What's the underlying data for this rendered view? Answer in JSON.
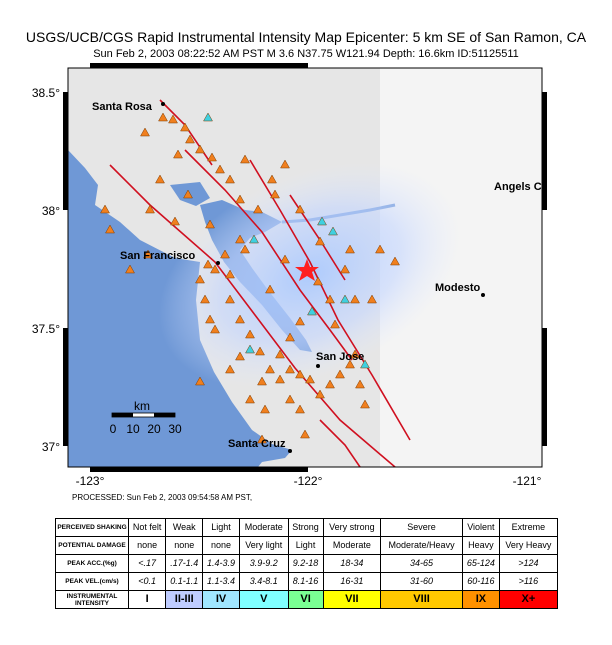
{
  "header": {
    "title": "USGS/UCB/CGS Rapid Instrumental Intensity Map Epicenter:   5 km SE  of San Ramon, CA",
    "subtitle": "Sun Feb  2, 2003 08:22:52 AM PST   M 3.6   N37.75 W121.94   Depth: 16.6km   ID:51125511"
  },
  "map": {
    "lat_ticks": [
      "38.5°",
      "38°",
      "37.5°",
      "37°"
    ],
    "lon_ticks": [
      "-123°",
      "-122°",
      "-121°"
    ],
    "places": [
      "Santa Rosa",
      "San Francisco",
      "Angels C",
      "Modesto",
      "San Jose",
      "Santa Cruz"
    ],
    "scale": {
      "unit": "km",
      "labels": [
        "0",
        "10",
        "20",
        "30"
      ]
    }
  },
  "processed": "PROCESSED: Sun Feb 2, 2003 09:54:58 AM PST,",
  "table": {
    "rows": [
      {
        "label": "PERCEIVED SHAKING",
        "cells": [
          "Not felt",
          "Weak",
          "Light",
          "Moderate",
          "Strong",
          "Very strong",
          "Severe",
          "Violent",
          "Extreme"
        ]
      },
      {
        "label": "POTENTIAL DAMAGE",
        "cells": [
          "none",
          "none",
          "none",
          "Very light",
          "Light",
          "Moderate",
          "Moderate/Heavy",
          "Heavy",
          "Very Heavy"
        ]
      },
      {
        "label": "PEAK ACC.(%g)",
        "cells": [
          "<.17",
          ".17-1.4",
          "1.4-3.9",
          "3.9-9.2",
          "9.2-18",
          "18-34",
          "34-65",
          "65-124",
          ">124"
        ]
      },
      {
        "label": "PEAK VEL.(cm/s)",
        "cells": [
          "<0.1",
          "0.1-1.1",
          "1.1-3.4",
          "3.4-8.1",
          "8.1-16",
          "16-31",
          "31-60",
          "60-116",
          ">116"
        ]
      },
      {
        "label": "INSTRUMENTAL INTENSITY",
        "cells": [
          "I",
          "II-III",
          "IV",
          "V",
          "VI",
          "VII",
          "VIII",
          "IX",
          "X+"
        ]
      }
    ],
    "intensity_colors": [
      "#ffffff",
      "#bfccff",
      "#a0e6ff",
      "#80ffff",
      "#7aff93",
      "#ffff00",
      "#ffc800",
      "#ff9100",
      "#ff0000"
    ]
  }
}
